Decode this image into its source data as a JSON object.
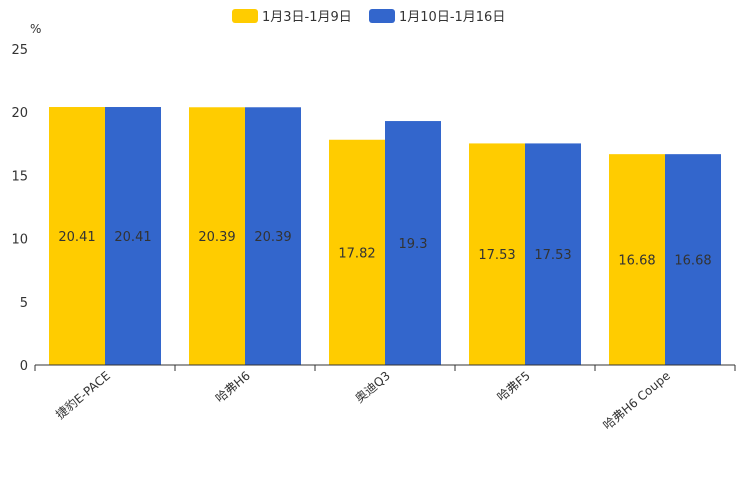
{
  "chart_data": {
    "type": "bar",
    "title": "",
    "xlabel": "",
    "ylabel": "%",
    "ylim": [
      0,
      25
    ],
    "yticks": [
      0,
      5,
      10,
      15,
      20,
      25
    ],
    "grid": false,
    "legend_position": "top-center",
    "categories": [
      "捷豹E-PACE",
      "哈弗H6",
      "奥迪Q3",
      "哈弗F5",
      "哈弗H6 Coupe"
    ],
    "series": [
      {
        "name": "1月3日-1月9日",
        "color": "#ffcc00",
        "values": [
          20.41,
          20.39,
          17.82,
          17.53,
          16.68
        ],
        "labels": [
          "20.41",
          "20.39",
          "17.82",
          "17.53",
          "16.68"
        ]
      },
      {
        "name": "1月10日-1月16日",
        "color": "#3366cc",
        "values": [
          20.41,
          20.39,
          19.3,
          17.53,
          16.68
        ],
        "labels": [
          "20.41",
          "20.39",
          "19.3",
          "17.53",
          "16.68"
        ]
      }
    ]
  }
}
